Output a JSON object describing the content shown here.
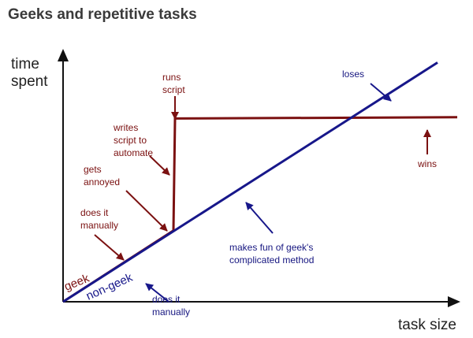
{
  "chart_data": {
    "type": "line",
    "title": "Geeks and repetitive tasks",
    "xlabel": "task size",
    "ylabel": [
      "time",
      "spent"
    ],
    "xlim": [
      0,
      100
    ],
    "ylim": [
      0,
      100
    ],
    "grid": false,
    "legend": "none",
    "colors": {
      "geek": "#7b1111",
      "non_geek": "#17178a",
      "axis": "#111111"
    },
    "series": [
      {
        "name": "geek",
        "color": "#7b1111",
        "x": [
          0,
          28,
          28.4,
          100
        ],
        "y": [
          0,
          28,
          72,
          72.5
        ]
      },
      {
        "name": "non-geek",
        "color": "#17178a",
        "x": [
          0,
          95
        ],
        "y": [
          0,
          94
        ]
      }
    ],
    "annotations": [
      {
        "id": "does-it-manually-geek",
        "lines": [
          "does it",
          "manually"
        ],
        "color": "red"
      },
      {
        "id": "gets-annoyed",
        "lines": [
          "gets",
          "annoyed"
        ],
        "color": "red"
      },
      {
        "id": "writes-script",
        "lines": [
          "writes",
          "script to",
          "automate"
        ],
        "color": "red"
      },
      {
        "id": "runs-script",
        "lines": [
          "runs",
          "script"
        ],
        "color": "red"
      },
      {
        "id": "wins",
        "lines": [
          "wins"
        ],
        "color": "red"
      },
      {
        "id": "loses",
        "lines": [
          "loses"
        ],
        "color": "blue"
      },
      {
        "id": "makes-fun",
        "lines": [
          "makes fun of geek's",
          "complicated method"
        ],
        "color": "blue"
      },
      {
        "id": "does-it-manually-nongeek",
        "lines": [
          "does it",
          "manually"
        ],
        "color": "blue"
      }
    ]
  }
}
